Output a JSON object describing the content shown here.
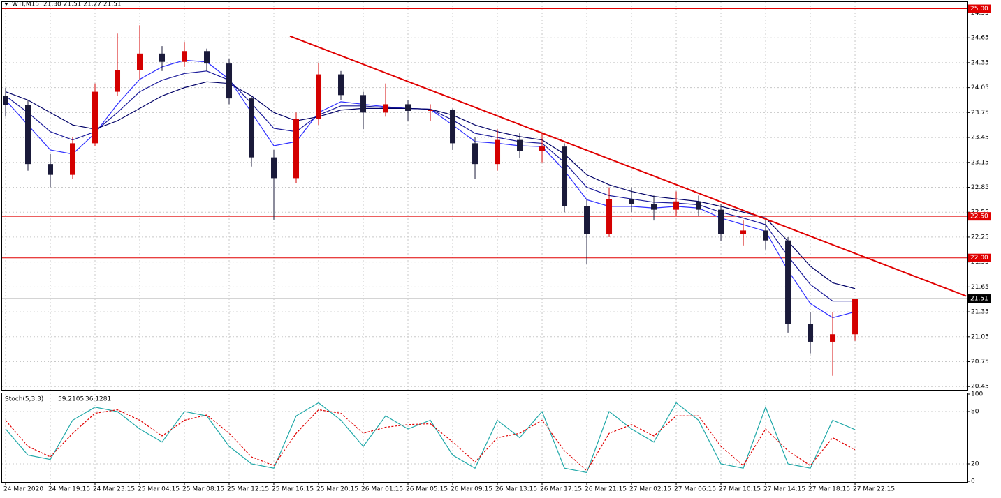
{
  "chart_data": [
    {
      "type": "candlestick",
      "title": "WTI,M15",
      "quote": "21.30 21.51 21.27 21.51",
      "xlim": [
        -0.25,
        43.03
      ],
      "ylim": [
        20.41,
        25.08
      ],
      "yticks": [
        20.45,
        20.75,
        21.05,
        21.35,
        21.65,
        21.95,
        22.25,
        22.55,
        22.85,
        23.15,
        23.45,
        23.75,
        24.05,
        24.35,
        24.65,
        24.95
      ],
      "grid": true,
      "up_color": "#d40000",
      "down_color": "#1a1a3a",
      "open": [
        23.95,
        23.84,
        23.13,
        23.0,
        23.38,
        24.0,
        24.26,
        24.46,
        24.36,
        24.49,
        24.34,
        23.92,
        23.21,
        22.96,
        23.67,
        24.21,
        23.96,
        23.75,
        23.85,
        23.77,
        23.78,
        23.38,
        23.13,
        23.42,
        23.29,
        23.34,
        22.62,
        22.29,
        22.71,
        22.65,
        22.58,
        22.68,
        22.58,
        22.29,
        22.33,
        22.21,
        21.2,
        20.99,
        21.08
      ],
      "high": [
        24.05,
        23.9,
        23.25,
        23.45,
        24.1,
        24.7,
        24.8,
        24.55,
        24.6,
        24.52,
        24.4,
        23.95,
        23.3,
        23.75,
        24.35,
        24.25,
        24.0,
        24.1,
        23.9,
        23.85,
        23.8,
        23.45,
        23.55,
        23.5,
        23.5,
        23.38,
        22.7,
        22.85,
        22.85,
        22.75,
        22.8,
        22.75,
        22.65,
        22.45,
        22.48,
        22.25,
        21.35,
        21.35,
        21.51
      ],
      "low": [
        23.7,
        23.05,
        22.85,
        22.95,
        23.35,
        23.95,
        24.15,
        24.25,
        24.3,
        24.25,
        23.85,
        23.1,
        22.46,
        22.9,
        23.6,
        23.9,
        23.55,
        23.7,
        23.65,
        23.65,
        23.3,
        22.95,
        23.05,
        23.2,
        23.15,
        22.55,
        21.93,
        22.25,
        22.55,
        22.45,
        22.5,
        22.5,
        22.2,
        22.15,
        22.1,
        21.1,
        20.85,
        20.58,
        21.0
      ],
      "close": [
        23.84,
        23.13,
        23.0,
        23.38,
        24.0,
        24.26,
        24.46,
        24.36,
        24.49,
        24.34,
        23.92,
        23.21,
        22.96,
        23.67,
        24.21,
        23.96,
        23.75,
        23.85,
        23.77,
        23.78,
        23.38,
        23.13,
        23.42,
        23.29,
        23.34,
        22.62,
        22.29,
        22.71,
        22.65,
        22.58,
        22.68,
        22.58,
        22.29,
        22.33,
        22.21,
        21.2,
        20.99,
        21.08,
        21.51
      ],
      "lines": [
        {
          "color": "#3030ff",
          "values": [
            23.9,
            23.6,
            23.3,
            23.25,
            23.5,
            23.85,
            24.15,
            24.3,
            24.38,
            24.36,
            24.15,
            23.75,
            23.35,
            23.4,
            23.75,
            23.88,
            23.85,
            23.82,
            23.8,
            23.79,
            23.6,
            23.4,
            23.38,
            23.35,
            23.34,
            23.05,
            22.7,
            22.62,
            22.62,
            22.6,
            22.62,
            22.6,
            22.48,
            22.4,
            22.32,
            21.85,
            21.45,
            21.28,
            21.35
          ]
        },
        {
          "color": "#1a1a9a",
          "values": [
            23.95,
            23.75,
            23.52,
            23.42,
            23.52,
            23.75,
            24.0,
            24.14,
            24.22,
            24.25,
            24.14,
            23.86,
            23.56,
            23.52,
            23.72,
            23.83,
            23.83,
            23.81,
            23.8,
            23.79,
            23.66,
            23.5,
            23.45,
            23.4,
            23.38,
            23.15,
            22.85,
            22.75,
            22.71,
            22.67,
            22.66,
            22.64,
            22.55,
            22.48,
            22.4,
            22.02,
            21.68,
            21.48,
            21.48
          ]
        },
        {
          "color": "#000066",
          "values": [
            24.0,
            23.9,
            23.75,
            23.6,
            23.55,
            23.65,
            23.8,
            23.95,
            24.05,
            24.12,
            24.1,
            23.95,
            23.75,
            23.65,
            23.7,
            23.78,
            23.8,
            23.8,
            23.8,
            23.79,
            23.72,
            23.6,
            23.52,
            23.46,
            23.42,
            23.25,
            23.0,
            22.88,
            22.8,
            22.74,
            22.71,
            22.68,
            22.62,
            22.55,
            22.48,
            22.2,
            21.9,
            21.7,
            21.63
          ]
        }
      ],
      "trendline": {
        "color": "#e00000",
        "x": [
          12.72,
          42.97
        ],
        "y": [
          24.67,
          21.54
        ]
      },
      "levels": [
        {
          "value": 25,
          "label": "25.00"
        },
        {
          "value": 22.5,
          "label": "22.50"
        },
        {
          "value": 22,
          "label": "22.00"
        }
      ],
      "level_color": "#e00000",
      "price_line": {
        "value": 21.51,
        "label": "21.51"
      }
    },
    {
      "type": "line",
      "title": "Stoch(5,3,3)",
      "xlim": [
        -0.25,
        43.03
      ],
      "ylim": [
        0,
        100
      ],
      "yticks": [
        0,
        20,
        80,
        100
      ],
      "levels": [
        20,
        80
      ],
      "xticks": [
        {
          "value": 0,
          "label": "24 Mar 2020"
        },
        {
          "value": 2,
          "label": "24 Mar 19:15"
        },
        {
          "value": 4,
          "label": "24 Mar 23:15"
        },
        {
          "value": 6,
          "label": "25 Mar 04:15"
        },
        {
          "value": 8,
          "label": "25 Mar 08:15"
        },
        {
          "value": 10,
          "label": "25 Mar 12:15"
        },
        {
          "value": 12,
          "label": "25 Mar 16:15"
        },
        {
          "value": 14,
          "label": "25 Mar 20:15"
        },
        {
          "value": 16,
          "label": "26 Mar 01:15"
        },
        {
          "value": 18,
          "label": "26 Mar 05:15"
        },
        {
          "value": 20,
          "label": "26 Mar 09:15"
        },
        {
          "value": 22,
          "label": "26 Mar 13:15"
        },
        {
          "value": 24,
          "label": "26 Mar 17:15"
        },
        {
          "value": 26,
          "label": "26 Mar 21:15"
        },
        {
          "value": 28,
          "label": "27 Mar 02:15"
        },
        {
          "value": 30,
          "label": "27 Mar 06:15"
        },
        {
          "value": 32,
          "label": "27 Mar 10:15"
        },
        {
          "value": 34,
          "label": "27 Mar 14:15"
        },
        {
          "value": 36,
          "label": "27 Mar 18:15"
        },
        {
          "value": 38,
          "label": "27 Mar 22:15"
        }
      ],
      "series": [
        {
          "color": "#20a8a8",
          "dashed": false,
          "values": [
            60,
            30,
            25,
            70,
            85,
            80,
            60,
            45,
            80,
            75,
            40,
            20,
            15,
            75,
            90,
            70,
            40,
            75,
            60,
            70,
            30,
            15,
            70,
            50,
            80,
            15,
            10,
            80,
            60,
            45,
            90,
            70,
            20,
            15,
            85,
            20,
            15,
            70,
            59.2105
          ]
        },
        {
          "color": "#e00000",
          "dashed": true,
          "values": [
            70,
            40,
            28,
            55,
            78,
            82,
            70,
            52,
            70,
            76,
            55,
            28,
            18,
            55,
            82,
            78,
            55,
            62,
            65,
            66,
            45,
            22,
            50,
            55,
            70,
            35,
            12,
            55,
            65,
            52,
            75,
            75,
            40,
            18,
            60,
            35,
            18,
            50,
            36.1281
          ]
        }
      ]
    }
  ]
}
